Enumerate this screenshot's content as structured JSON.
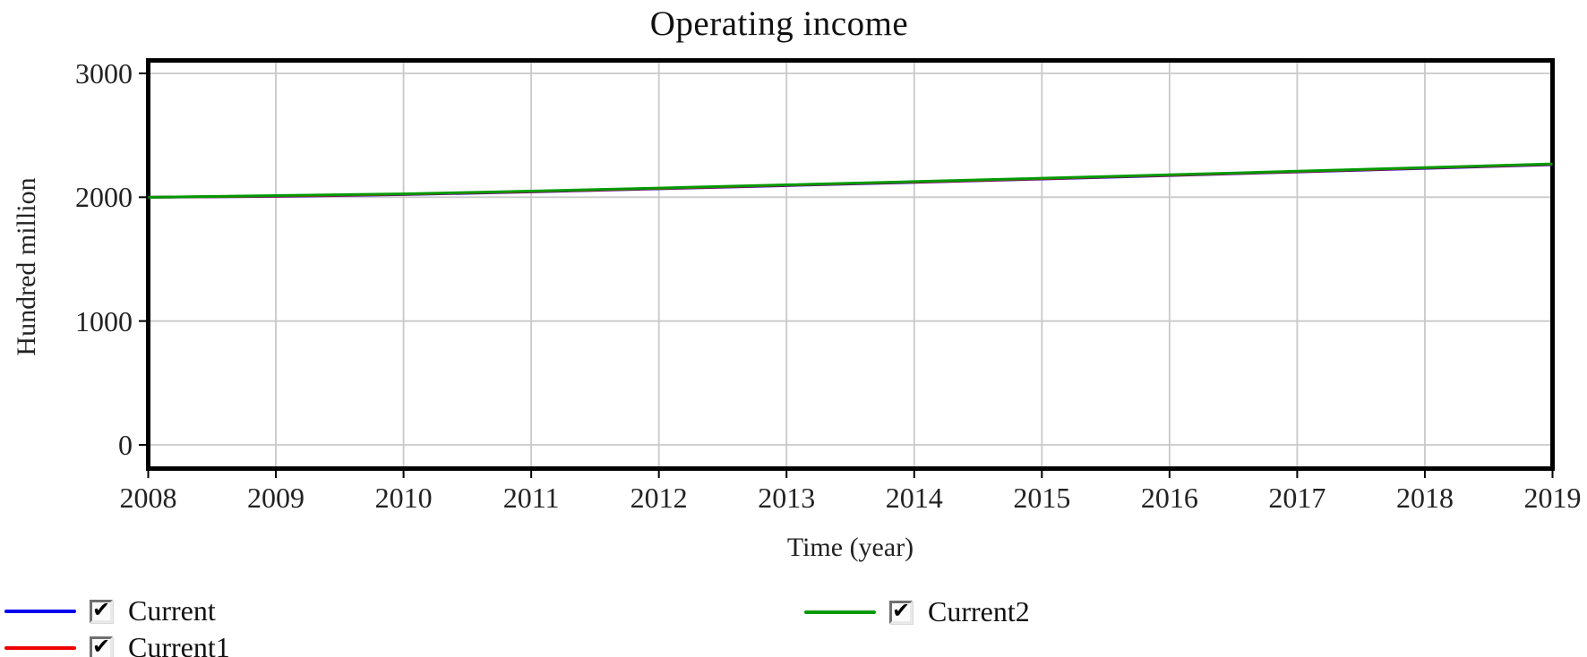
{
  "icons": {
    "checkmark": "✔"
  },
  "chart_data": {
    "type": "line",
    "title": "Operating income",
    "xlabel": "Time (year)",
    "ylabel": "Hundred million",
    "x": [
      2008,
      2009,
      2010,
      2011,
      2012,
      2013,
      2014,
      2015,
      2016,
      2017,
      2018,
      2019
    ],
    "xlim": [
      2008,
      2019
    ],
    "ylim": [
      0,
      3000
    ],
    "yticks": [
      0,
      1000,
      2000,
      3000
    ],
    "xticks": [
      2008,
      2009,
      2010,
      2011,
      2012,
      2013,
      2014,
      2015,
      2016,
      2017,
      2018,
      2019
    ],
    "grid": true,
    "grid_color": "#c9c9c9",
    "border_color": "#000000",
    "legend_position": "bottom",
    "series": [
      {
        "name": "Current",
        "color": "#0000ee",
        "checked": true,
        "values": [
          2000,
          2007,
          2021,
          2043,
          2068,
          2094,
          2120,
          2147,
          2175,
          2204,
          2233,
          2263
        ]
      },
      {
        "name": "Current1",
        "color": "#ee0000",
        "checked": true,
        "values": [
          2000,
          2010,
          2024,
          2046,
          2071,
          2097,
          2123,
          2150,
          2178,
          2207,
          2236,
          2266
        ]
      },
      {
        "name": "Current2",
        "color": "#009a00",
        "checked": true,
        "values": [
          2000,
          2013,
          2027,
          2049,
          2074,
          2100,
          2126,
          2153,
          2181,
          2210,
          2239,
          2269
        ]
      }
    ]
  }
}
